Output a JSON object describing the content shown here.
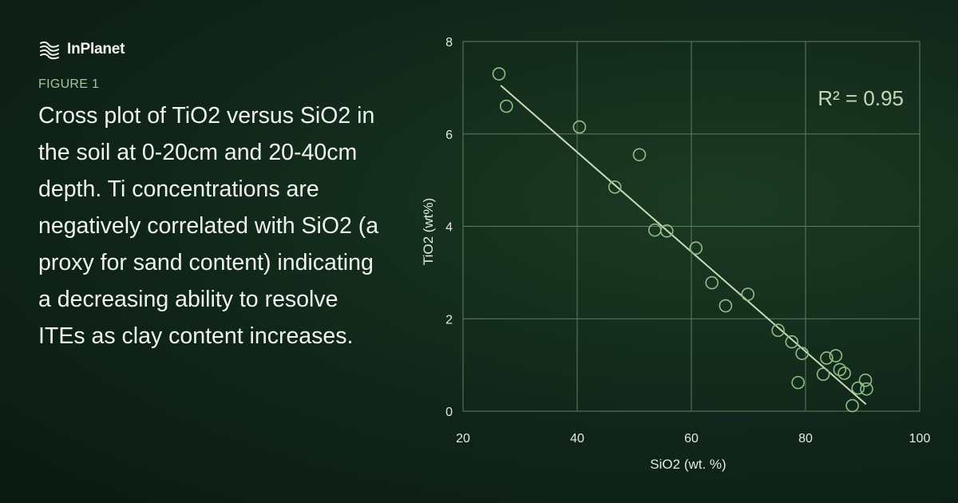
{
  "brand": {
    "name": "InPlanet",
    "logo_icon": "inplanet-logo-icon"
  },
  "figure": {
    "label": "FIGURE 1",
    "caption": "Cross plot of TiO2 versus SiO2 in the soil at 0-20cm and 20-40cm depth. Ti concentrations are negatively correlated with SiO2 (a proxy for sand content) indicating a decreasing ability to resolve ITEs as clay content increases."
  },
  "colors": {
    "background": "#12281b",
    "accent": "#a9c59a",
    "grid": "#5d7f5a",
    "marker": "#8fbf86",
    "trendline": "#c9dbb8"
  },
  "chart_data": {
    "type": "scatter",
    "xlabel": "SiO2 (wt. %)",
    "ylabel": "TiO2 (wt%)",
    "xlim": [
      20,
      100
    ],
    "ylim": [
      0,
      8
    ],
    "xticks": [
      20,
      40,
      60,
      80,
      100
    ],
    "yticks": [
      0,
      2,
      4,
      6,
      8
    ],
    "grid": true,
    "annotation": "R² = 0.95",
    "points": [
      {
        "x": 26.3,
        "y": 7.3
      },
      {
        "x": 27.6,
        "y": 6.6
      },
      {
        "x": 40.4,
        "y": 6.15
      },
      {
        "x": 50.9,
        "y": 5.55
      },
      {
        "x": 46.6,
        "y": 4.85
      },
      {
        "x": 53.6,
        "y": 3.92
      },
      {
        "x": 55.7,
        "y": 3.9
      },
      {
        "x": 60.8,
        "y": 3.53
      },
      {
        "x": 63.6,
        "y": 2.78
      },
      {
        "x": 69.9,
        "y": 2.53
      },
      {
        "x": 66.0,
        "y": 2.28
      },
      {
        "x": 75.2,
        "y": 1.75
      },
      {
        "x": 77.6,
        "y": 1.5
      },
      {
        "x": 79.4,
        "y": 1.25
      },
      {
        "x": 83.7,
        "y": 1.15
      },
      {
        "x": 85.3,
        "y": 1.2
      },
      {
        "x": 86.0,
        "y": 0.9
      },
      {
        "x": 86.8,
        "y": 0.82
      },
      {
        "x": 83.1,
        "y": 0.8
      },
      {
        "x": 78.7,
        "y": 0.62
      },
      {
        "x": 90.5,
        "y": 0.67
      },
      {
        "x": 89.2,
        "y": 0.5
      },
      {
        "x": 90.7,
        "y": 0.48
      },
      {
        "x": 88.2,
        "y": 0.12
      }
    ],
    "trendline": {
      "x": [
        26.6,
        90.6
      ],
      "y": [
        7.05,
        0.15
      ]
    }
  }
}
